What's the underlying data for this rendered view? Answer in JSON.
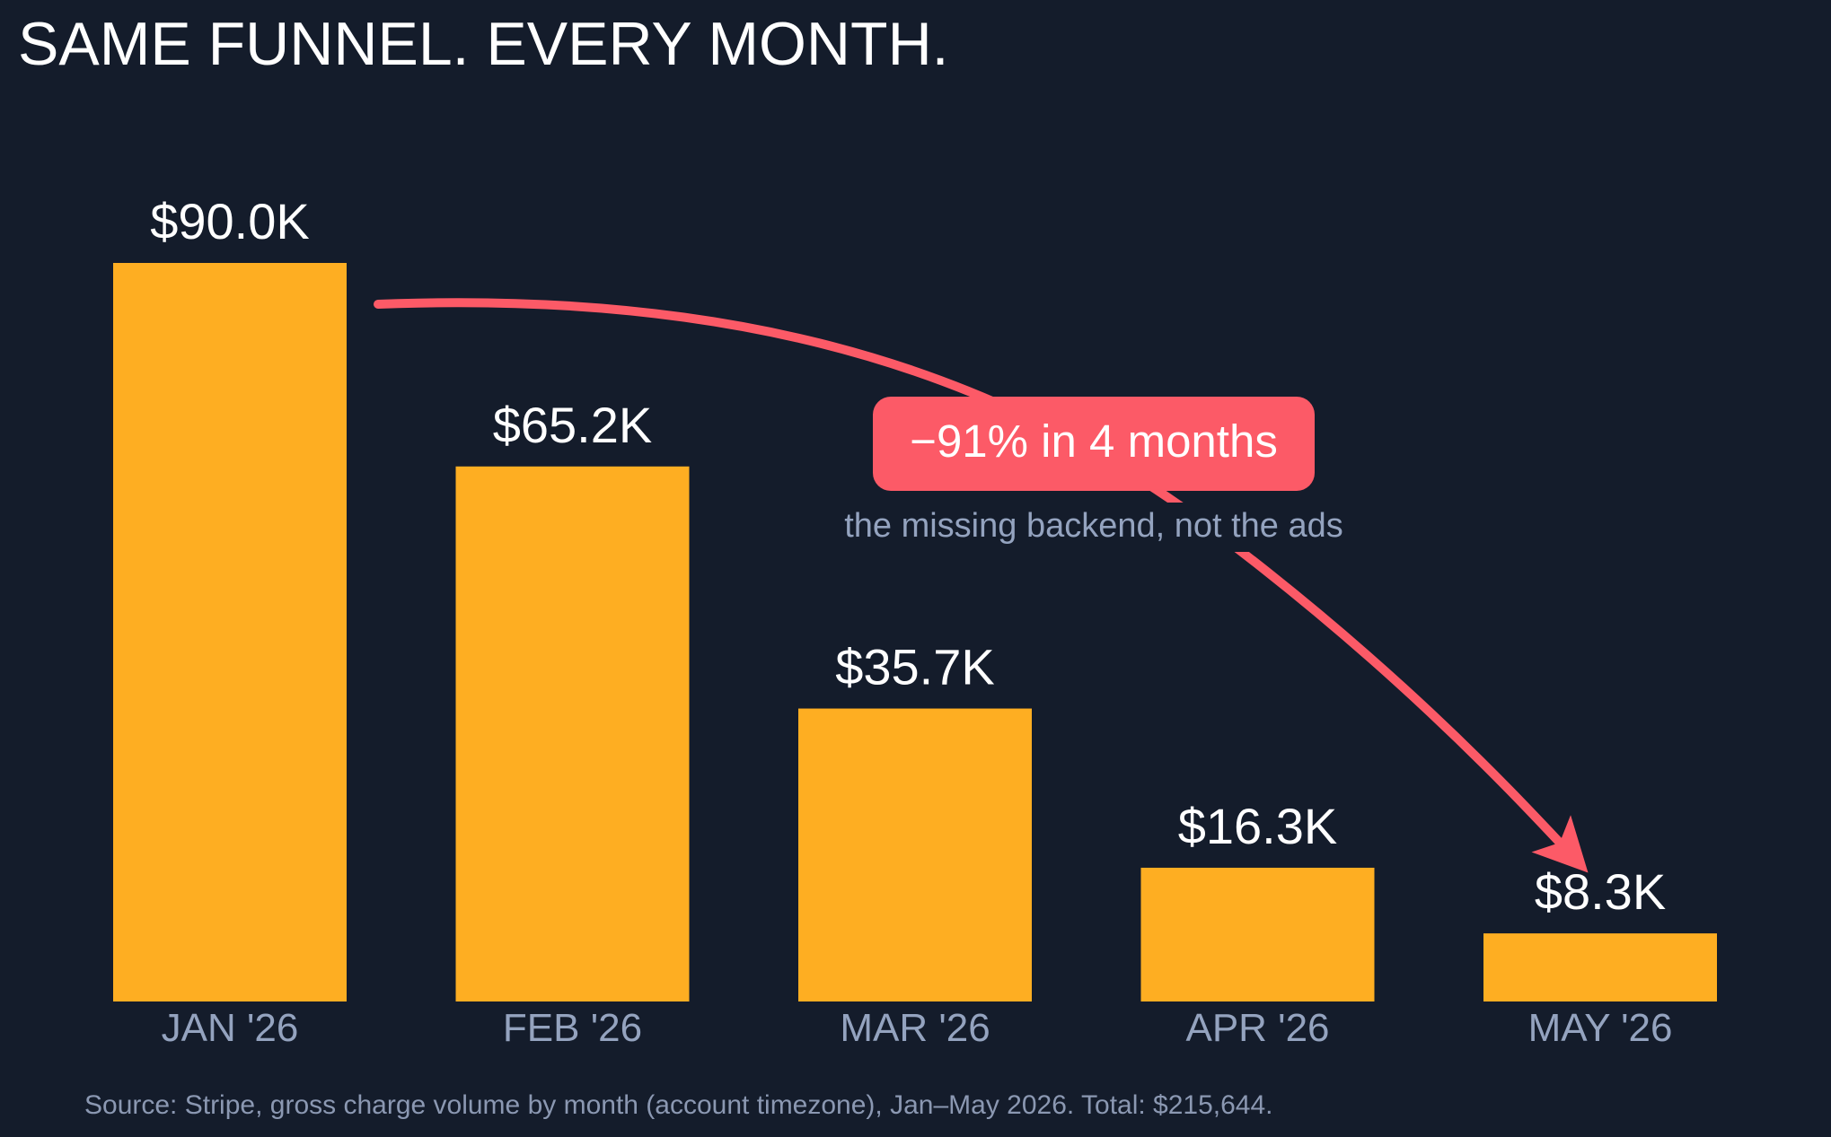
{
  "chart_data": {
    "type": "bar",
    "title": "SAME FUNNEL. EVERY MONTH.",
    "categories": [
      "JAN '26",
      "FEB '26",
      "MAR '26",
      "APR '26",
      "MAY '26"
    ],
    "values": [
      90.0,
      65.2,
      35.7,
      16.3,
      8.3
    ],
    "value_unit": "$K",
    "data_labels": [
      "$90.0K",
      "$65.2K",
      "$35.7K",
      "$16.3K",
      "$8.3K"
    ],
    "ylim": [
      0,
      90
    ],
    "xlabel": "",
    "ylabel": "",
    "grid": false,
    "legend": "none",
    "annotation": {
      "label": "−91% in 4 months",
      "sublabel": "the missing backend, not the ads",
      "from": "JAN '26",
      "to": "MAY '26"
    },
    "source": "Source: Stripe, gross charge volume by month (account timezone), Jan–May 2026. Total: $215,644."
  },
  "colors": {
    "background": "#141c2b",
    "bar": "#feae22",
    "arrow": "#fc5a67",
    "title_text": "#ffffff",
    "value_text": "#ffffff",
    "axis_text": "#94a3bf",
    "subtext": "#94a3bf",
    "source_text": "#8b98b2"
  }
}
